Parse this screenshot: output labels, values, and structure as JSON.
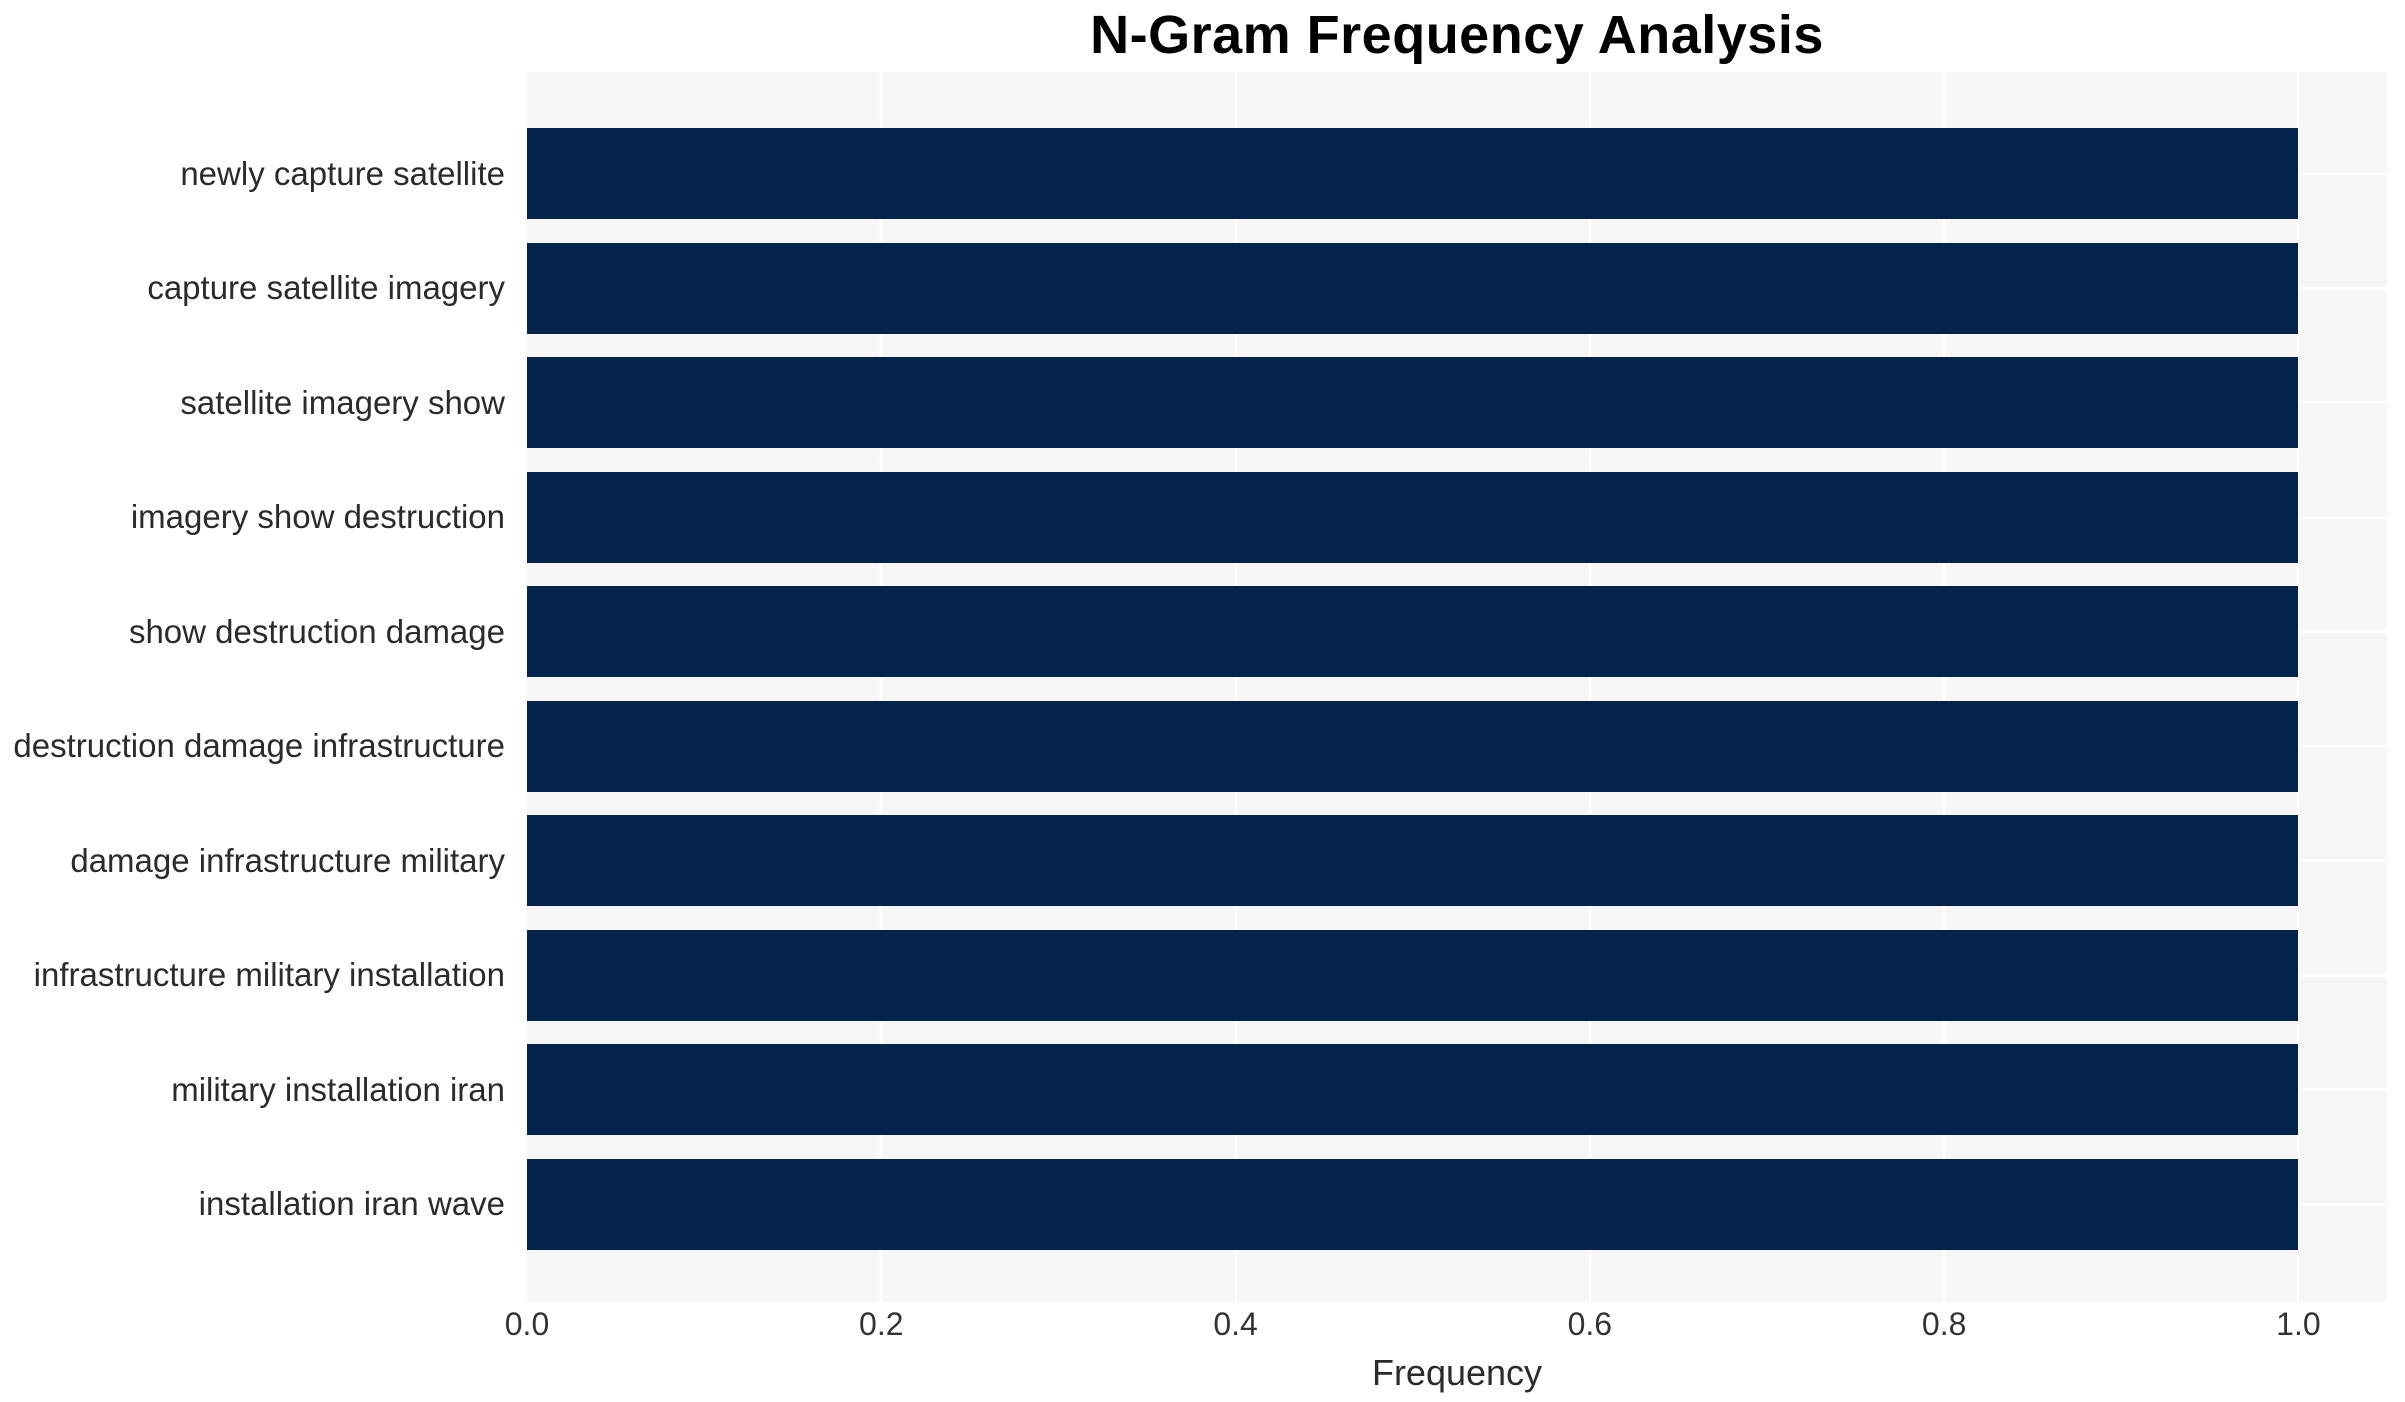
{
  "chart_data": {
    "type": "bar",
    "orientation": "horizontal",
    "title": "N-Gram Frequency Analysis",
    "xlabel": "Frequency",
    "ylabel": "",
    "categories": [
      "newly capture satellite",
      "capture satellite imagery",
      "satellite imagery show",
      "imagery show destruction",
      "show destruction damage",
      "destruction damage infrastructure",
      "damage infrastructure military",
      "infrastructure military installation",
      "military installation iran",
      "installation iran wave"
    ],
    "values": [
      1.0,
      1.0,
      1.0,
      1.0,
      1.0,
      1.0,
      1.0,
      1.0,
      1.0,
      1.0
    ],
    "xticks": [
      0.0,
      0.2,
      0.4,
      0.6,
      0.8,
      1.0
    ],
    "xticklabels": [
      "0.0",
      "0.2",
      "0.4",
      "0.6",
      "0.8",
      "1.0"
    ],
    "xlim": [
      0,
      1.05
    ],
    "grid": true,
    "legend": false,
    "colors": {
      "bar": "#03224c",
      "plot_bg": "#f6f6f7",
      "grid": "#ffffff",
      "title": "#000000",
      "tick": "#333333",
      "label": "#2b2b2b"
    }
  }
}
